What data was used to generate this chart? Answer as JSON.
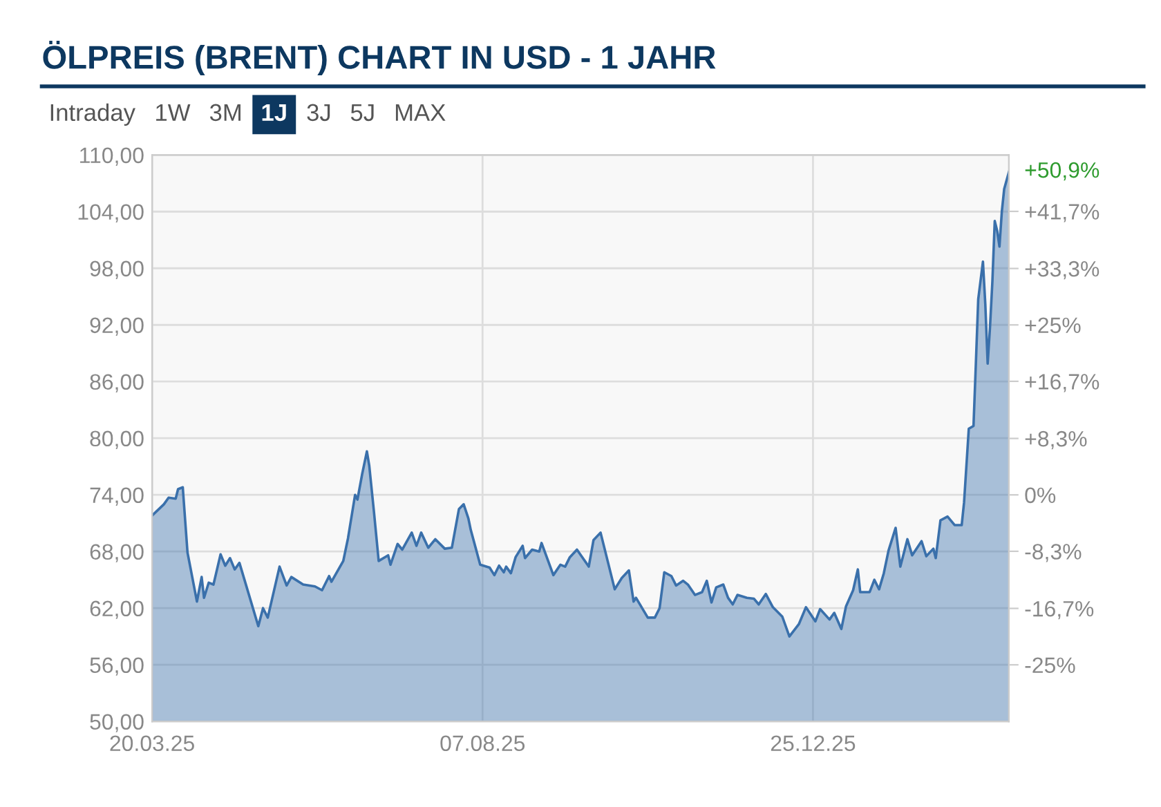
{
  "chart_data": {
    "type": "area",
    "title": "ÖLPREIS (BRENT) CHART IN USD - 1 JAHR",
    "annotations": [
      "Intraday",
      "1W",
      "3M",
      "1J",
      "3J",
      "5J",
      "MAX",
      {
        "text": "+50,9%",
        "x": "2026-03-18",
        "y": 108.2
      }
    ],
    "x": [
      "2025-03-20",
      "2025-03-25",
      "2025-03-27",
      "2025-03-30",
      "2025-03-31",
      "2025-04-02",
      "2025-04-04",
      "2025-04-08",
      "2025-04-10",
      "2025-04-11",
      "2025-04-13",
      "2025-04-15",
      "2025-04-18",
      "2025-04-20",
      "2025-04-22",
      "2025-04-24",
      "2025-04-26",
      "2025-05-04",
      "2025-05-06",
      "2025-05-08",
      "2025-05-13",
      "2025-05-16",
      "2025-05-18",
      "2025-05-23",
      "2025-05-28",
      "2025-05-31",
      "2025-06-03",
      "2025-06-04",
      "2025-06-09",
      "2025-06-11",
      "2025-06-14",
      "2025-06-15",
      "2025-06-17",
      "2025-06-19",
      "2025-06-20",
      "2025-06-22",
      "2025-06-24",
      "2025-06-28",
      "2025-06-29",
      "2025-07-02",
      "2025-07-04",
      "2025-07-08",
      "2025-07-10",
      "2025-07-12",
      "2025-07-15",
      "2025-07-18",
      "2025-07-22",
      "2025-07-25",
      "2025-07-28",
      "2025-07-30",
      "2025-08-01",
      "2025-08-02",
      "2025-08-06",
      "2025-08-10",
      "2025-08-12",
      "2025-08-14",
      "2025-08-16",
      "2025-08-17",
      "2025-08-19",
      "2025-08-21",
      "2025-08-24",
      "2025-08-25",
      "2025-08-28",
      "2025-08-31",
      "2025-09-01",
      "2025-09-06",
      "2025-09-09",
      "2025-09-11",
      "2025-09-13",
      "2025-09-16",
      "2025-09-21",
      "2025-09-23",
      "2025-09-26",
      "2025-10-02",
      "2025-10-05",
      "2025-10-08",
      "2025-10-10",
      "2025-10-11",
      "2025-10-16",
      "2025-10-19",
      "2025-10-21",
      "2025-10-23",
      "2025-10-26",
      "2025-10-28",
      "2025-10-31",
      "2025-11-02",
      "2025-11-05",
      "2025-11-08",
      "2025-11-10",
      "2025-11-12",
      "2025-11-14",
      "2025-11-17",
      "2025-11-19",
      "2025-11-21",
      "2025-11-23",
      "2025-11-27",
      "2025-11-30",
      "2025-12-02",
      "2025-12-05",
      "2025-12-08",
      "2025-12-12",
      "2025-12-15",
      "2025-12-19",
      "2025-12-22",
      "2025-12-26",
      "2025-12-28",
      "2026-01-01",
      "2026-01-03",
      "2026-01-06",
      "2026-01-08",
      "2026-01-11",
      "2026-01-13",
      "2026-01-14",
      "2026-01-18",
      "2026-01-20",
      "2026-01-22",
      "2026-01-24",
      "2026-01-26",
      "2026-01-29",
      "2026-01-31",
      "2026-02-03",
      "2026-02-05",
      "2026-02-09",
      "2026-02-11",
      "2026-02-14",
      "2026-02-15",
      "2026-02-17",
      "2026-02-20",
      "2026-02-23",
      "2026-02-26",
      "2026-02-27",
      "2026-03-01",
      "2026-03-03",
      "2026-03-04",
      "2026-03-05",
      "2026-03-07",
      "2026-03-08",
      "2026-03-09",
      "2026-03-10",
      "2026-03-11",
      "2026-03-12",
      "2026-03-13",
      "2026-03-14",
      "2026-03-15",
      "2026-03-16",
      "2026-03-18"
    ],
    "series": [
      {
        "color": "#3a70ab",
        "values": [
          71.8,
          73.0,
          73.7,
          73.6,
          74.6,
          74.8,
          67.9,
          62.7,
          65.3,
          63.1,
          64.7,
          64.5,
          67.7,
          66.5,
          67.3,
          66.1,
          66.8,
          60.1,
          62.0,
          61.0,
          66.4,
          64.4,
          65.3,
          64.5,
          64.3,
          63.9,
          65.4,
          64.8,
          67.0,
          69.4,
          74.0,
          73.5,
          76.2,
          78.6,
          77.1,
          72.2,
          67.0,
          67.6,
          66.6,
          68.8,
          68.2,
          70.0,
          68.6,
          70.0,
          68.4,
          69.3,
          68.3,
          68.4,
          72.5,
          73.0,
          71.5,
          70.3,
          66.6,
          66.3,
          65.5,
          66.5,
          65.8,
          66.4,
          65.7,
          67.4,
          68.6,
          67.3,
          68.2,
          68.0,
          68.9,
          65.5,
          66.6,
          66.4,
          67.4,
          68.2,
          66.4,
          69.2,
          70.0,
          64.0,
          65.2,
          66.0,
          62.7,
          63.1,
          61.0,
          61.0,
          62.0,
          65.8,
          65.4,
          64.4,
          64.9,
          64.5,
          63.4,
          63.7,
          64.9,
          62.6,
          64.2,
          64.5,
          63.1,
          62.4,
          63.4,
          63.1,
          63.0,
          62.4,
          63.5,
          62.1,
          61.1,
          59.0,
          60.3,
          62.1,
          60.6,
          61.9,
          60.8,
          61.5,
          59.8,
          62.2,
          63.9,
          66.1,
          63.7,
          63.7,
          65.0,
          64.0,
          65.7,
          68.1,
          70.5,
          66.4,
          69.3,
          67.6,
          69.1,
          67.5,
          68.3,
          67.3,
          71.3,
          71.7,
          70.8,
          70.8,
          73.2,
          81.0,
          81.3,
          87.9,
          94.7,
          98.7,
          94.2,
          87.9,
          91.8,
          96.6,
          103.0,
          102.0,
          100.3,
          104.0,
          106.4,
          108.2
        ]
      }
    ],
    "xlim": [
      "2025-03-20",
      "2026-03-18"
    ],
    "xticks": [
      {
        "value": "2025-03-20",
        "label": "20.03.25"
      },
      {
        "value": "2025-08-07",
        "label": "07.08.25"
      },
      {
        "value": "2025-12-25",
        "label": "25.12.25"
      }
    ],
    "ylim": [
      50,
      110
    ],
    "yticks": [
      {
        "value": 50,
        "label": "50,00"
      },
      {
        "value": 56,
        "label": "56,00"
      },
      {
        "value": 62,
        "label": "62,00"
      },
      {
        "value": 68,
        "label": "68,00"
      },
      {
        "value": 74,
        "label": "74,00"
      },
      {
        "value": 80,
        "label": "80,00"
      },
      {
        "value": 86,
        "label": "86,00"
      },
      {
        "value": 92,
        "label": "92,00"
      },
      {
        "value": 98,
        "label": "98,00"
      },
      {
        "value": 104,
        "label": "104,00"
      },
      {
        "value": 110,
        "label": "110,00"
      }
    ],
    "y2lim": [
      -33.33,
      50
    ],
    "y2ticks": [
      {
        "value": -25,
        "label": "-25%"
      },
      {
        "value": -16.7,
        "label": "-16,7%"
      },
      {
        "value": -8.3,
        "label": "-8,3%"
      },
      {
        "value": 0,
        "label": "0%"
      },
      {
        "value": 8.3,
        "label": "+8,3%"
      },
      {
        "value": 16.7,
        "label": "+16,7%"
      },
      {
        "value": 25,
        "label": "+25%"
      },
      {
        "value": 33.3,
        "label": "+33,3%"
      },
      {
        "value": 41.7,
        "label": "+41,7%"
      }
    ],
    "grid": true
  }
}
